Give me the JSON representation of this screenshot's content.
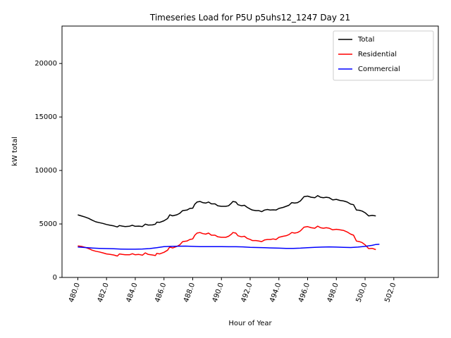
{
  "chart_data": {
    "type": "line",
    "title": "Timeseries Load for P5U p5uhs12_1247  Day 21",
    "xlabel": "Hour of Year",
    "ylabel": "kW total",
    "xlim": [
      478.9,
      505.1
    ],
    "ylim": [
      0,
      23500
    ],
    "x_ticks": [
      480,
      482,
      484,
      486,
      488,
      490,
      492,
      494,
      496,
      498,
      500,
      502
    ],
    "x_tick_labels": [
      "480.0",
      "482.0",
      "484.0",
      "486.0",
      "488.0",
      "490.0",
      "492.0",
      "494.0",
      "496.0",
      "498.0",
      "500.0",
      "502.0"
    ],
    "y_ticks": [
      0,
      5000,
      10000,
      15000,
      20000
    ],
    "y_tick_labels": [
      "0",
      "5000",
      "10000",
      "15000",
      "20000"
    ],
    "grid": false,
    "legend_position": "top-right",
    "series": [
      {
        "name": "Total",
        "color": "#000000",
        "points": [
          [
            480.0,
            5850
          ],
          [
            480.25,
            5750
          ],
          [
            480.5,
            5650
          ],
          [
            480.75,
            5520
          ],
          [
            481.0,
            5350
          ],
          [
            481.25,
            5200
          ],
          [
            481.5,
            5120
          ],
          [
            481.75,
            5050
          ],
          [
            482.0,
            4950
          ],
          [
            482.25,
            4880
          ],
          [
            482.5,
            4820
          ],
          [
            482.75,
            4720
          ],
          [
            482.9,
            4850
          ],
          [
            483.1,
            4800
          ],
          [
            483.3,
            4760
          ],
          [
            483.6,
            4790
          ],
          [
            483.8,
            4880
          ],
          [
            484.0,
            4780
          ],
          [
            484.25,
            4800
          ],
          [
            484.5,
            4760
          ],
          [
            484.7,
            4980
          ],
          [
            484.9,
            4900
          ],
          [
            485.2,
            4910
          ],
          [
            485.4,
            4980
          ],
          [
            485.5,
            5170
          ],
          [
            485.7,
            5150
          ],
          [
            486.0,
            5300
          ],
          [
            486.25,
            5500
          ],
          [
            486.4,
            5850
          ],
          [
            486.6,
            5760
          ],
          [
            486.9,
            5860
          ],
          [
            487.1,
            6000
          ],
          [
            487.3,
            6250
          ],
          [
            487.6,
            6300
          ],
          [
            487.8,
            6450
          ],
          [
            488.0,
            6480
          ],
          [
            488.15,
            6850
          ],
          [
            488.3,
            7050
          ],
          [
            488.5,
            7100
          ],
          [
            488.7,
            7000
          ],
          [
            488.9,
            6950
          ],
          [
            489.1,
            7050
          ],
          [
            489.3,
            6880
          ],
          [
            489.55,
            6880
          ],
          [
            489.75,
            6700
          ],
          [
            490.0,
            6650
          ],
          [
            490.3,
            6650
          ],
          [
            490.5,
            6700
          ],
          [
            490.7,
            6950
          ],
          [
            490.8,
            7100
          ],
          [
            491.0,
            7050
          ],
          [
            491.15,
            6800
          ],
          [
            491.4,
            6700
          ],
          [
            491.6,
            6750
          ],
          [
            491.8,
            6550
          ],
          [
            492.0,
            6400
          ],
          [
            492.15,
            6300
          ],
          [
            492.4,
            6250
          ],
          [
            492.6,
            6250
          ],
          [
            492.8,
            6150
          ],
          [
            493.0,
            6300
          ],
          [
            493.2,
            6350
          ],
          [
            493.4,
            6300
          ],
          [
            493.6,
            6320
          ],
          [
            493.8,
            6300
          ],
          [
            494.0,
            6450
          ],
          [
            494.3,
            6550
          ],
          [
            494.5,
            6650
          ],
          [
            494.7,
            6750
          ],
          [
            494.9,
            7000
          ],
          [
            495.1,
            6950
          ],
          [
            495.3,
            7000
          ],
          [
            495.5,
            7150
          ],
          [
            495.75,
            7550
          ],
          [
            496.0,
            7600
          ],
          [
            496.25,
            7500
          ],
          [
            496.5,
            7450
          ],
          [
            496.7,
            7650
          ],
          [
            496.9,
            7500
          ],
          [
            497.1,
            7450
          ],
          [
            497.3,
            7500
          ],
          [
            497.5,
            7450
          ],
          [
            497.75,
            7250
          ],
          [
            498.0,
            7300
          ],
          [
            498.25,
            7200
          ],
          [
            498.5,
            7150
          ],
          [
            498.75,
            7050
          ],
          [
            499.0,
            6850
          ],
          [
            499.2,
            6800
          ],
          [
            499.4,
            6300
          ],
          [
            499.6,
            6280
          ],
          [
            499.8,
            6200
          ],
          [
            500.0,
            6050
          ],
          [
            500.25,
            5750
          ],
          [
            500.5,
            5800
          ],
          [
            500.75,
            5750
          ]
        ]
      },
      {
        "name": "Residential",
        "color": "#ff0000",
        "points": [
          [
            480.0,
            2950
          ],
          [
            480.25,
            2900
          ],
          [
            480.5,
            2820
          ],
          [
            480.75,
            2700
          ],
          [
            481.0,
            2550
          ],
          [
            481.25,
            2450
          ],
          [
            481.5,
            2380
          ],
          [
            481.75,
            2300
          ],
          [
            482.0,
            2200
          ],
          [
            482.25,
            2150
          ],
          [
            482.5,
            2100
          ],
          [
            482.75,
            2000
          ],
          [
            482.9,
            2200
          ],
          [
            483.1,
            2150
          ],
          [
            483.3,
            2120
          ],
          [
            483.6,
            2120
          ],
          [
            483.8,
            2220
          ],
          [
            484.0,
            2120
          ],
          [
            484.25,
            2150
          ],
          [
            484.5,
            2080
          ],
          [
            484.7,
            2300
          ],
          [
            484.9,
            2150
          ],
          [
            485.2,
            2100
          ],
          [
            485.4,
            2050
          ],
          [
            485.5,
            2250
          ],
          [
            485.7,
            2200
          ],
          [
            486.0,
            2350
          ],
          [
            486.25,
            2550
          ],
          [
            486.4,
            2850
          ],
          [
            486.6,
            2750
          ],
          [
            486.9,
            2900
          ],
          [
            487.1,
            3050
          ],
          [
            487.3,
            3350
          ],
          [
            487.6,
            3400
          ],
          [
            487.8,
            3550
          ],
          [
            488.0,
            3600
          ],
          [
            488.15,
            3950
          ],
          [
            488.3,
            4150
          ],
          [
            488.5,
            4200
          ],
          [
            488.7,
            4100
          ],
          [
            488.9,
            4050
          ],
          [
            489.1,
            4150
          ],
          [
            489.3,
            3950
          ],
          [
            489.55,
            3950
          ],
          [
            489.75,
            3800
          ],
          [
            490.0,
            3750
          ],
          [
            490.3,
            3750
          ],
          [
            490.5,
            3850
          ],
          [
            490.7,
            4050
          ],
          [
            490.8,
            4200
          ],
          [
            491.0,
            4150
          ],
          [
            491.15,
            3900
          ],
          [
            491.4,
            3800
          ],
          [
            491.6,
            3850
          ],
          [
            491.8,
            3650
          ],
          [
            492.0,
            3550
          ],
          [
            492.15,
            3450
          ],
          [
            492.4,
            3450
          ],
          [
            492.6,
            3400
          ],
          [
            492.8,
            3350
          ],
          [
            493.0,
            3500
          ],
          [
            493.2,
            3550
          ],
          [
            493.4,
            3550
          ],
          [
            493.6,
            3600
          ],
          [
            493.8,
            3550
          ],
          [
            494.0,
            3750
          ],
          [
            494.3,
            3850
          ],
          [
            494.5,
            3900
          ],
          [
            494.7,
            4000
          ],
          [
            494.9,
            4200
          ],
          [
            495.1,
            4150
          ],
          [
            495.3,
            4200
          ],
          [
            495.5,
            4350
          ],
          [
            495.75,
            4700
          ],
          [
            496.0,
            4750
          ],
          [
            496.25,
            4650
          ],
          [
            496.5,
            4600
          ],
          [
            496.7,
            4800
          ],
          [
            496.9,
            4650
          ],
          [
            497.1,
            4600
          ],
          [
            497.3,
            4650
          ],
          [
            497.5,
            4600
          ],
          [
            497.75,
            4450
          ],
          [
            498.0,
            4500
          ],
          [
            498.25,
            4450
          ],
          [
            498.5,
            4400
          ],
          [
            498.75,
            4250
          ],
          [
            499.0,
            4050
          ],
          [
            499.2,
            3950
          ],
          [
            499.4,
            3400
          ],
          [
            499.6,
            3350
          ],
          [
            499.8,
            3250
          ],
          [
            500.0,
            3050
          ],
          [
            500.25,
            2700
          ],
          [
            500.5,
            2720
          ],
          [
            500.75,
            2600
          ]
        ]
      },
      {
        "name": "Commercial",
        "color": "#0000ff",
        "points": [
          [
            480.0,
            2850
          ],
          [
            480.5,
            2800
          ],
          [
            481.0,
            2750
          ],
          [
            481.5,
            2720
          ],
          [
            482.0,
            2700
          ],
          [
            482.5,
            2680
          ],
          [
            483.0,
            2650
          ],
          [
            483.5,
            2640
          ],
          [
            484.0,
            2640
          ],
          [
            484.5,
            2660
          ],
          [
            485.0,
            2700
          ],
          [
            485.5,
            2780
          ],
          [
            486.0,
            2880
          ],
          [
            486.5,
            2900
          ],
          [
            487.0,
            2920
          ],
          [
            487.5,
            2930
          ],
          [
            488.0,
            2900
          ],
          [
            488.5,
            2880
          ],
          [
            489.0,
            2880
          ],
          [
            489.5,
            2880
          ],
          [
            490.0,
            2880
          ],
          [
            490.5,
            2870
          ],
          [
            491.0,
            2870
          ],
          [
            491.5,
            2860
          ],
          [
            492.0,
            2820
          ],
          [
            492.5,
            2800
          ],
          [
            493.0,
            2780
          ],
          [
            493.5,
            2760
          ],
          [
            494.0,
            2740
          ],
          [
            494.5,
            2720
          ],
          [
            495.0,
            2720
          ],
          [
            495.5,
            2740
          ],
          [
            496.0,
            2780
          ],
          [
            496.5,
            2820
          ],
          [
            497.0,
            2840
          ],
          [
            497.5,
            2860
          ],
          [
            498.0,
            2840
          ],
          [
            498.5,
            2820
          ],
          [
            499.0,
            2800
          ],
          [
            499.5,
            2840
          ],
          [
            500.0,
            2900
          ],
          [
            500.5,
            3000
          ],
          [
            500.75,
            3080
          ],
          [
            501.0,
            3100
          ]
        ]
      }
    ]
  }
}
